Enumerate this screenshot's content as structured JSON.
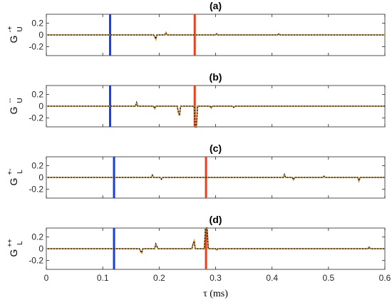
{
  "chart_data": [
    {
      "type": "line",
      "title": "(a)",
      "ylabel_main": "G",
      "ylabel_sup": "-+",
      "ylabel_sub": "U",
      "xlim": [
        0,
        0.6
      ],
      "ylim": [
        -0.35,
        0.35
      ],
      "yticks": [
        0.2,
        0,
        -0.2
      ],
      "ytick_labels": [
        "0.2",
        "0",
        "-0.2"
      ],
      "vlines": [
        {
          "x": 0.113,
          "color": "#1a3fd6"
        },
        {
          "x": 0.263,
          "color": "#e8401c"
        }
      ],
      "series": [
        {
          "points": [
            [
              0,
              0
            ],
            [
              0.19,
              0
            ],
            [
              0.192,
              -0.02
            ],
            [
              0.194,
              -0.07
            ],
            [
              0.196,
              0
            ],
            [
              0.21,
              0
            ],
            [
              0.212,
              0.04
            ],
            [
              0.214,
              0
            ],
            [
              0.3,
              0
            ],
            [
              0.302,
              0.02
            ],
            [
              0.304,
              0
            ],
            [
              0.41,
              0
            ],
            [
              0.412,
              0.02
            ],
            [
              0.414,
              0
            ],
            [
              0.6,
              0
            ]
          ]
        }
      ]
    },
    {
      "type": "line",
      "title": "(b)",
      "ylabel_main": "G",
      "ylabel_sup": "--",
      "ylabel_sub": "U",
      "xlim": [
        0,
        0.6
      ],
      "ylim": [
        -0.35,
        0.35
      ],
      "yticks": [
        0.2,
        0,
        -0.2
      ],
      "ytick_labels": [
        "0.2",
        "0",
        "-0.2"
      ],
      "vlines": [
        {
          "x": 0.113,
          "color": "#1a3fd6"
        },
        {
          "x": 0.263,
          "color": "#e8401c"
        }
      ],
      "series": [
        {
          "points": [
            [
              0,
              0
            ],
            [
              0.158,
              0
            ],
            [
              0.16,
              0.06
            ],
            [
              0.162,
              0
            ],
            [
              0.19,
              0
            ],
            [
              0.192,
              -0.04
            ],
            [
              0.194,
              0
            ],
            [
              0.232,
              0
            ],
            [
              0.234,
              -0.1
            ],
            [
              0.236,
              -0.16
            ],
            [
              0.238,
              0
            ],
            [
              0.262,
              0
            ],
            [
              0.264,
              -0.35
            ],
            [
              0.266,
              -0.35
            ],
            [
              0.268,
              0
            ],
            [
              0.29,
              0
            ],
            [
              0.292,
              -0.03
            ],
            [
              0.294,
              0
            ],
            [
              0.33,
              0
            ],
            [
              0.332,
              -0.02
            ],
            [
              0.334,
              0
            ],
            [
              0.6,
              0
            ]
          ]
        }
      ]
    },
    {
      "type": "line",
      "title": "(c)",
      "ylabel_main": "G",
      "ylabel_sup": "+-",
      "ylabel_sub": "L",
      "xlim": [
        0,
        0.6
      ],
      "ylim": [
        -0.35,
        0.35
      ],
      "yticks": [
        0.2,
        0,
        -0.2
      ],
      "ytick_labels": [
        "0.2",
        "0",
        "-0.2"
      ],
      "vlines": [
        {
          "x": 0.12,
          "color": "#1a3fd6"
        },
        {
          "x": 0.283,
          "color": "#e8401c"
        }
      ],
      "series": [
        {
          "points": [
            [
              0,
              0
            ],
            [
              0.186,
              0
            ],
            [
              0.188,
              0.04
            ],
            [
              0.19,
              0
            ],
            [
              0.202,
              0
            ],
            [
              0.204,
              -0.03
            ],
            [
              0.206,
              0
            ],
            [
              0.42,
              0
            ],
            [
              0.422,
              0.05
            ],
            [
              0.424,
              0
            ],
            [
              0.436,
              0
            ],
            [
              0.438,
              -0.04
            ],
            [
              0.44,
              0
            ],
            [
              0.49,
              0
            ],
            [
              0.492,
              0.02
            ],
            [
              0.494,
              0
            ],
            [
              0.552,
              0
            ],
            [
              0.554,
              -0.06
            ],
            [
              0.556,
              0
            ],
            [
              0.6,
              0
            ]
          ]
        }
      ]
    },
    {
      "type": "line",
      "title": "(d)",
      "ylabel_main": "G",
      "ylabel_sup": "++",
      "ylabel_sub": "L",
      "xlim": [
        0,
        0.6
      ],
      "ylim": [
        -0.35,
        0.35
      ],
      "yticks": [
        0.2,
        0,
        -0.2
      ],
      "ytick_labels": [
        "0.2",
        "0",
        "-0.2"
      ],
      "vlines": [
        {
          "x": 0.12,
          "color": "#1a3fd6"
        },
        {
          "x": 0.283,
          "color": "#e8401c"
        }
      ],
      "series": [
        {
          "points": [
            [
              0,
              0
            ],
            [
              0.165,
              0
            ],
            [
              0.167,
              -0.04
            ],
            [
              0.169,
              -0.07
            ],
            [
              0.171,
              0
            ],
            [
              0.192,
              0
            ],
            [
              0.194,
              0.08
            ],
            [
              0.196,
              0.04
            ],
            [
              0.198,
              0
            ],
            [
              0.258,
              0
            ],
            [
              0.26,
              0.08
            ],
            [
              0.262,
              0.13
            ],
            [
              0.264,
              0
            ],
            [
              0.28,
              0
            ],
            [
              0.282,
              0.35
            ],
            [
              0.285,
              0.35
            ],
            [
              0.287,
              0
            ],
            [
              0.3,
              0
            ],
            [
              0.302,
              -0.02
            ],
            [
              0.304,
              0
            ],
            [
              0.57,
              0
            ],
            [
              0.572,
              0.03
            ],
            [
              0.574,
              0
            ],
            [
              0.6,
              0
            ]
          ]
        }
      ]
    }
  ],
  "shared_xaxis": {
    "xticks": [
      0,
      0.1,
      0.2,
      0.3,
      0.4,
      0.5,
      0.6
    ],
    "xtick_labels": [
      "0",
      "0.1",
      "0.2",
      "0.3",
      "0.4",
      "0.5",
      "0.6"
    ],
    "xlabel": "τ (ms)"
  },
  "colors": {
    "blue_line": "#1a3fd6",
    "red_line": "#e8401c",
    "trace_dark": "#1a1a1a",
    "trace_orange": "#e89b1c"
  }
}
